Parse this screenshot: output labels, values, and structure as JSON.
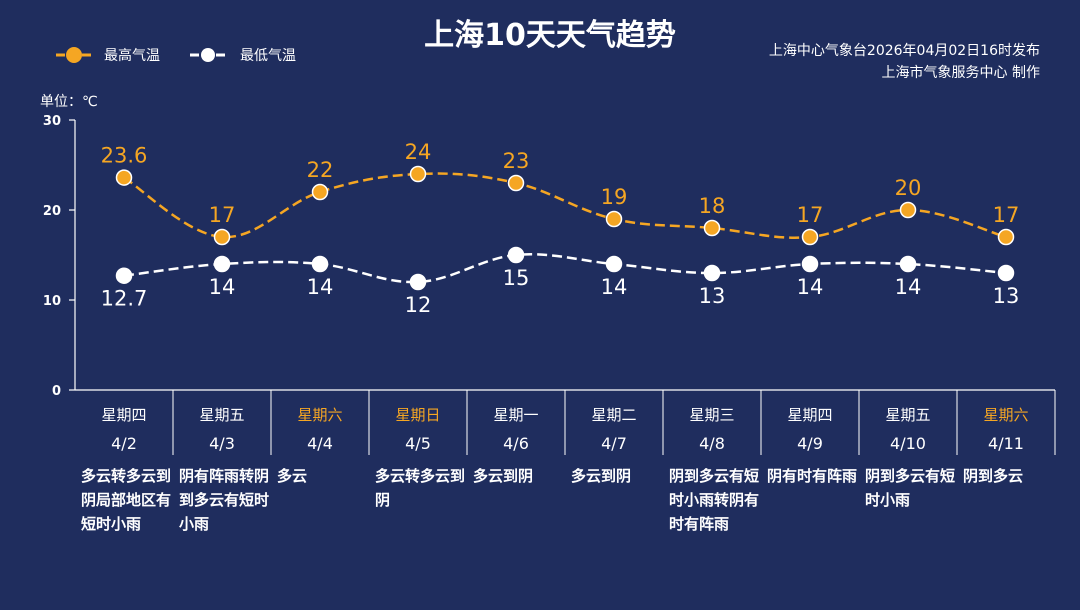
{
  "header": {
    "title": "上海10天天气趋势",
    "publish_line1": "上海中心气象台2026年04月02日16时发布",
    "publish_line2": "上海市气象服务中心  制作",
    "unit_label": "单位：℃"
  },
  "colors": {
    "background": "#1f2d5e",
    "high": "#f5a623",
    "low": "#ffffff",
    "weekend": "#f5a623",
    "grid": "#ffffff"
  },
  "chart_data": {
    "type": "line",
    "title": "上海10天天气趋势",
    "ylabel": "单位：℃",
    "ylim": [
      0,
      30
    ],
    "yticks": [
      0,
      10,
      20,
      30
    ],
    "legend": [
      "最高气温",
      "最低气温"
    ],
    "legend_position": "top-left",
    "categories": [
      "4/2",
      "4/3",
      "4/4",
      "4/5",
      "4/6",
      "4/7",
      "4/8",
      "4/9",
      "4/10",
      "4/11"
    ],
    "weekdays": [
      "星期四",
      "星期五",
      "星期六",
      "星期日",
      "星期一",
      "星期二",
      "星期三",
      "星期四",
      "星期五",
      "星期六"
    ],
    "weekend_flags": [
      false,
      false,
      true,
      true,
      false,
      false,
      false,
      false,
      false,
      true
    ],
    "descriptions": [
      "多云转多云到阴局部地区有短时小雨",
      "阴有阵雨转阴到多云有短时小雨",
      "多云",
      "多云转多云到阴",
      "多云到阴",
      "多云到阴",
      "阴到多云有短时小雨转阴有时有阵雨",
      "阴有时有阵雨",
      "阴到多云有短时小雨",
      "阴到多云"
    ],
    "series": [
      {
        "name": "最高气温",
        "values": [
          23.6,
          17,
          22,
          24,
          23,
          19,
          18,
          17,
          20,
          17
        ],
        "labels": [
          "23.6",
          "17",
          "22",
          "24",
          "23",
          "19",
          "18",
          "17",
          "20",
          "17"
        ]
      },
      {
        "name": "最低气温",
        "values": [
          12.7,
          14,
          14,
          12,
          15,
          14,
          13,
          14,
          14,
          13
        ],
        "labels": [
          "12.7",
          "14",
          "14",
          "12",
          "15",
          "14",
          "13",
          "14",
          "14",
          "13"
        ]
      }
    ]
  }
}
